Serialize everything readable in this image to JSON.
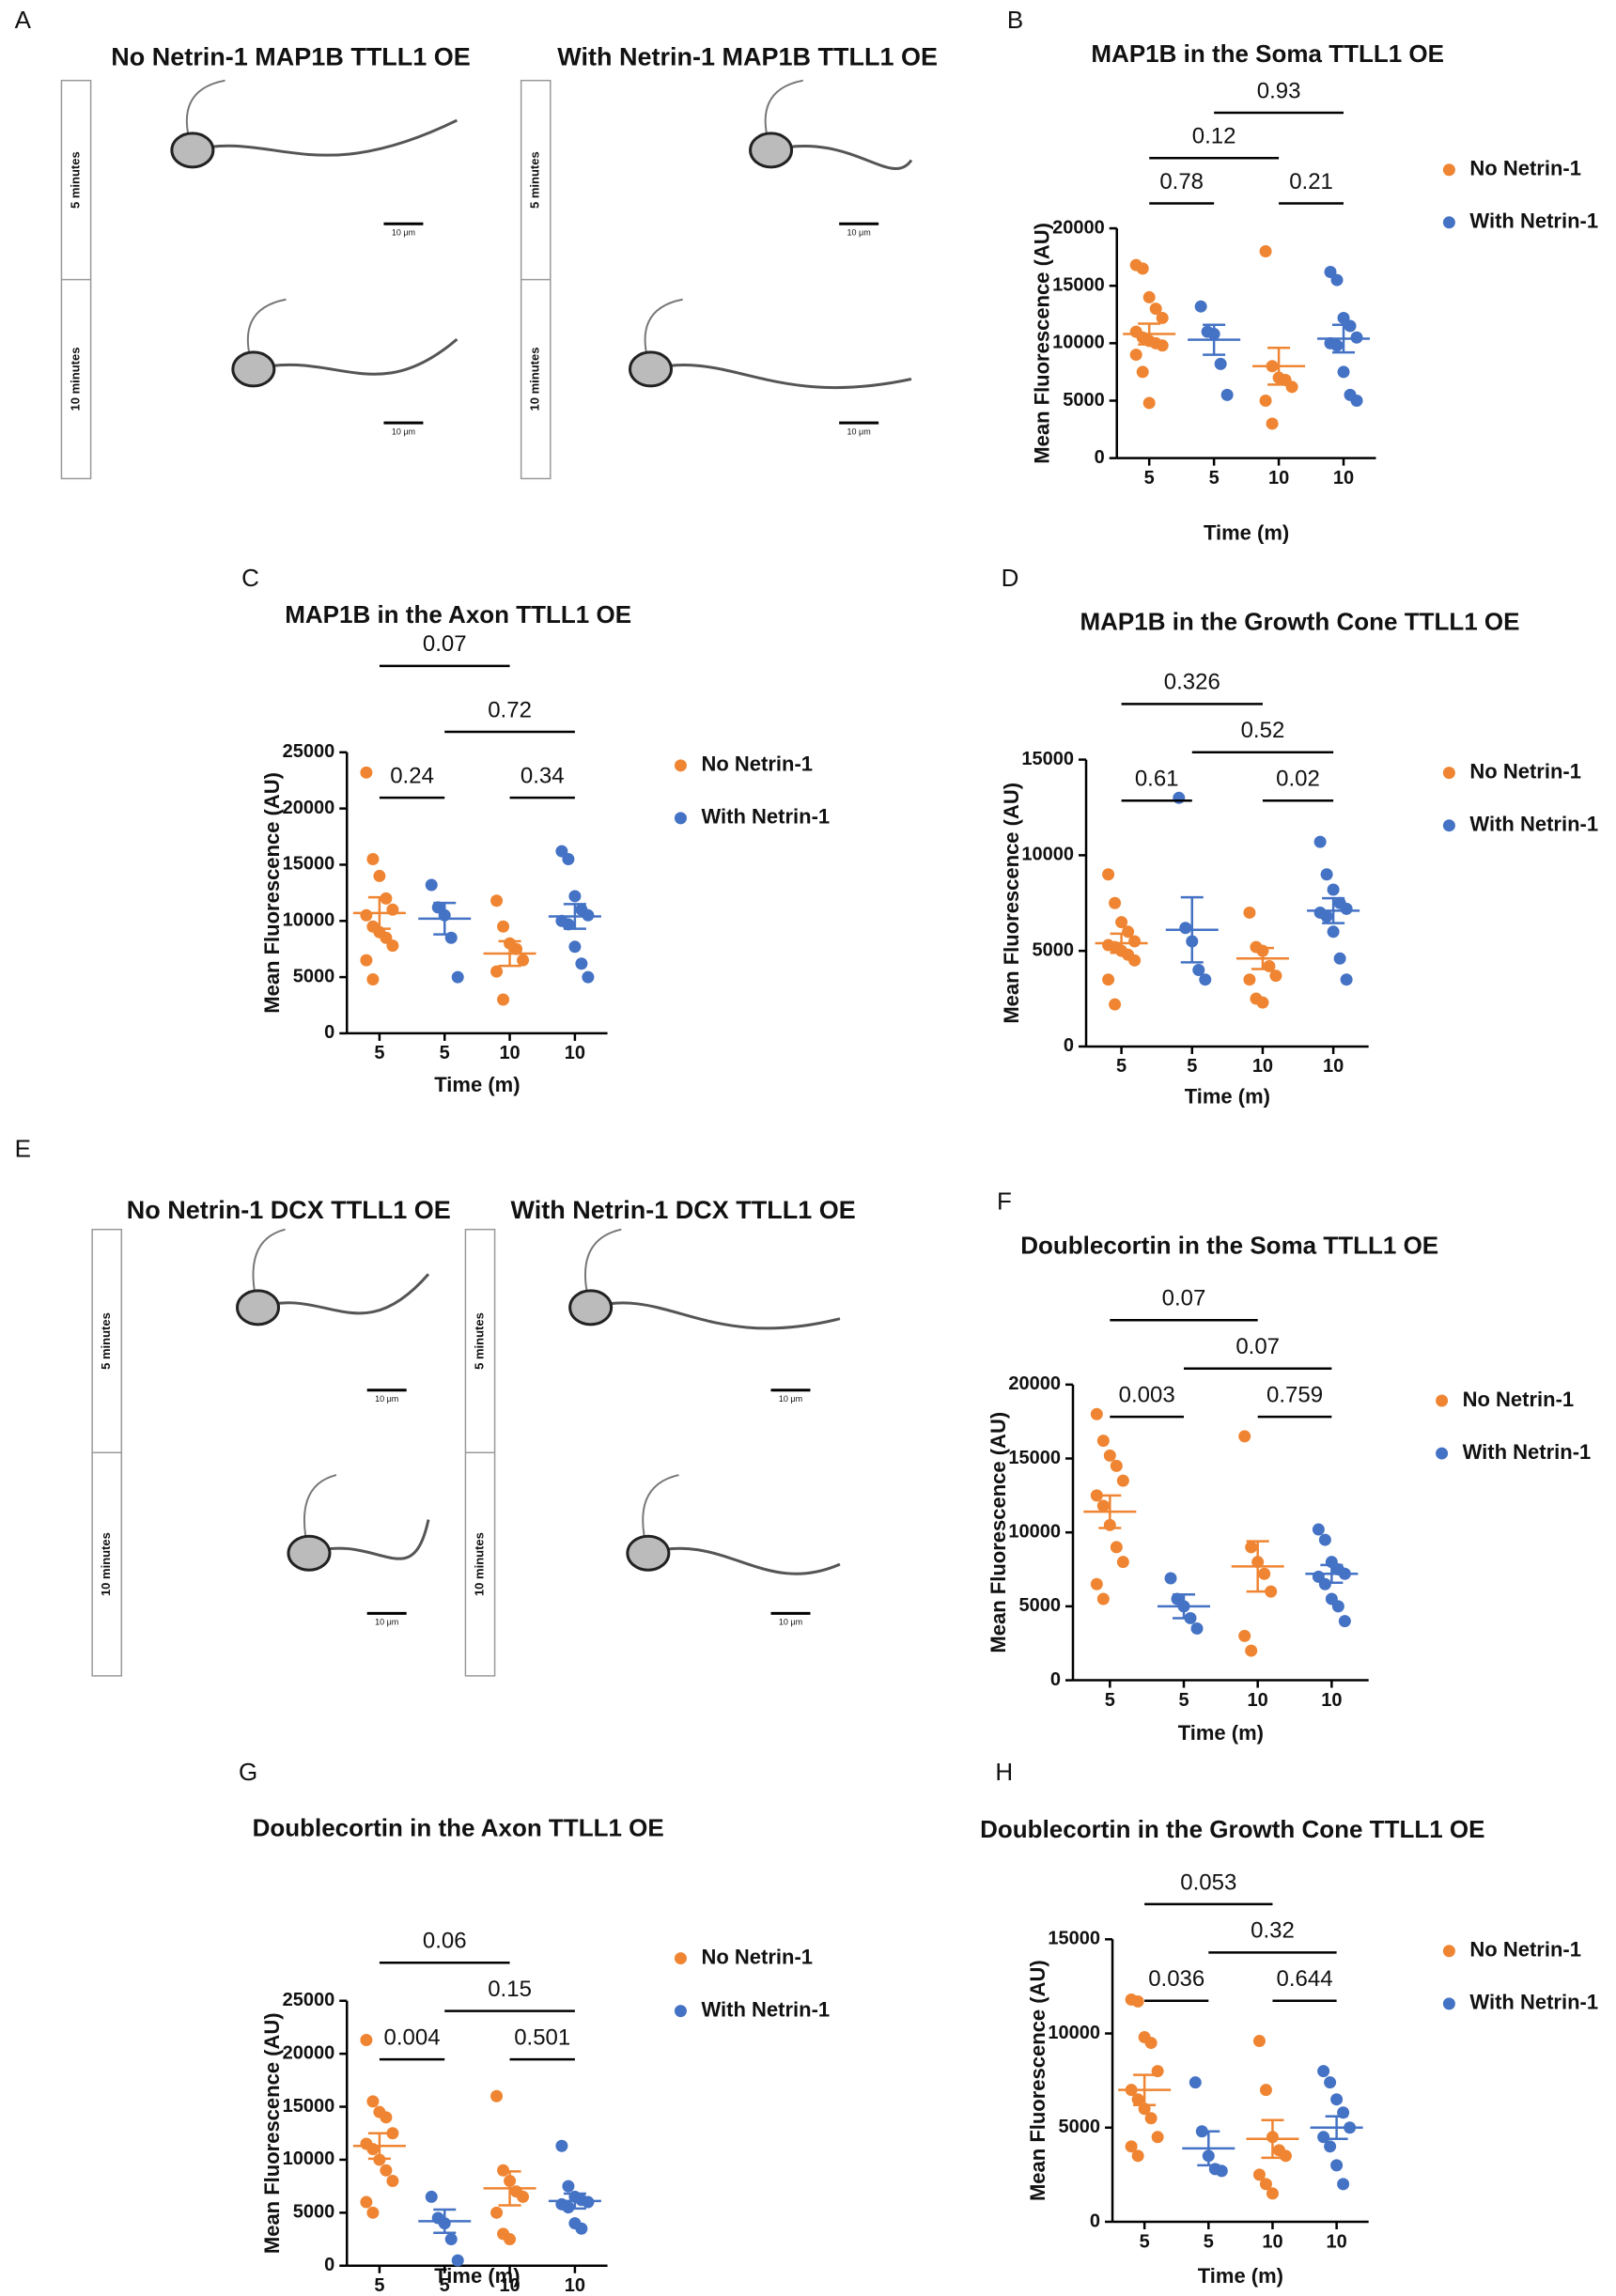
{
  "micrographs": [
    {
      "panel": "A",
      "images": [
        {
          "title": "No Netrin-1 MAP1B TTLL1 OE",
          "rows": [
            "5 minutes",
            "10 minutes"
          ],
          "scale_bars": [
            "10 μm",
            "10 μm"
          ]
        },
        {
          "title": "With Netrin-1 MAP1B TTLL1 OE",
          "rows": [
            "5 minutes",
            "10 minutes"
          ],
          "scale_bars": [
            "10 μm",
            "10 μm"
          ]
        }
      ]
    },
    {
      "panel": "E",
      "images": [
        {
          "title": "No Netrin-1 DCX TTLL1 OE",
          "rows": [
            "5 minutes",
            "10 minutes"
          ],
          "scale_bars": [
            "10 μm",
            "10 μm"
          ]
        },
        {
          "title": "With Netrin-1 DCX TTLL1 OE",
          "rows": [
            "5 minutes",
            "10 minutes"
          ],
          "scale_bars": [
            "10 μm",
            "10 μm"
          ]
        }
      ]
    }
  ],
  "chart_data": [
    {
      "type": "strip",
      "panel": "B",
      "title": "MAP1B in the Soma TTLL1 OE",
      "ylabel": "Mean Fluorescence (AU)",
      "xlabel": "Time (m)",
      "ylim": [
        0,
        20000
      ],
      "yticks": [
        0,
        5000,
        10000,
        15000,
        20000
      ],
      "series": [
        {
          "name": "No Netrin-1",
          "color": "#ef8532",
          "categories": [
            "5",
            "10"
          ],
          "points": [
            [
              16800,
              16500,
              14000,
              13000,
              12200,
              11000,
              10500,
              10200,
              10000,
              9800,
              9000,
              7500,
              4800
            ],
            [
              18000,
              8000,
              7000,
              6800,
              6200,
              5000,
              3000
            ]
          ],
          "mean": [
            10800,
            8000
          ],
          "sem": [
            900,
            1600
          ]
        },
        {
          "name": "With Netrin-1",
          "color": "#4472c4",
          "categories": [
            "5",
            "10"
          ],
          "points": [
            [
              13200,
              11000,
              10800,
              8200,
              5500
            ],
            [
              16200,
              15500,
              12200,
              11500,
              10500,
              10000,
              9800,
              7500,
              5500,
              5000
            ]
          ],
          "mean": [
            10300,
            10400
          ],
          "sem": [
            1300,
            1200
          ]
        }
      ],
      "comparisons": [
        {
          "label": "0.78",
          "groups": [
            0,
            1
          ]
        },
        {
          "label": "0.21",
          "groups": [
            2,
            3
          ]
        },
        {
          "label": "0.12",
          "groups": [
            0,
            2
          ]
        },
        {
          "label": "0.93",
          "groups": [
            1,
            3
          ]
        }
      ]
    },
    {
      "type": "strip",
      "panel": "C",
      "title": "MAP1B in the Axon TTLL1 OE",
      "ylabel": "Mean Fluorescence (AU)",
      "xlabel": "Time (m)",
      "ylim": [
        0,
        25000
      ],
      "yticks": [
        0,
        5000,
        10000,
        15000,
        20000,
        25000
      ],
      "series": [
        {
          "name": "No Netrin-1",
          "color": "#ef8532",
          "categories": [
            "5",
            "10"
          ],
          "points": [
            [
              23200,
              15500,
              14000,
              12000,
              11000,
              10500,
              9500,
              9000,
              8500,
              7800,
              6500,
              4800
            ],
            [
              11800,
              9500,
              8000,
              7500,
              6500,
              5500,
              3000
            ]
          ],
          "mean": [
            10700,
            7100
          ],
          "sem": [
            1400,
            1100
          ]
        },
        {
          "name": "With Netrin-1",
          "color": "#4472c4",
          "categories": [
            "5",
            "10"
          ],
          "points": [
            [
              13200,
              11200,
              10500,
              8500,
              5000
            ],
            [
              16200,
              15500,
              12200,
              11000,
              10500,
              10000,
              9700,
              7700,
              6200,
              5000
            ]
          ],
          "mean": [
            10200,
            10400
          ],
          "sem": [
            1400,
            1100
          ]
        }
      ],
      "comparisons": [
        {
          "label": "0.34",
          "groups": [
            2,
            3
          ]
        },
        {
          "label": "0.24",
          "groups": [
            0,
            1
          ]
        },
        {
          "label": "0.72",
          "groups": [
            1,
            3
          ]
        },
        {
          "label": "0.07",
          "groups": [
            0,
            2
          ]
        }
      ]
    },
    {
      "type": "strip",
      "panel": "D",
      "title": "MAP1B in the Growth Cone TTLL1 OE",
      "ylabel": "Mean Fluorescence (AU)",
      "xlabel": "Time (m)",
      "ylim": [
        0,
        15000
      ],
      "yticks": [
        0,
        5000,
        10000,
        15000
      ],
      "series": [
        {
          "name": "No Netrin-1",
          "color": "#ef8532",
          "categories": [
            "5",
            "10"
          ],
          "points": [
            [
              9000,
              7500,
              6500,
              6000,
              5500,
              5300,
              5200,
              5000,
              4800,
              4500,
              3500,
              2200
            ],
            [
              7000,
              5200,
              5000,
              4200,
              3700,
              3500,
              2500,
              2300
            ]
          ],
          "mean": [
            5400,
            4600
          ],
          "sem": [
            500,
            550
          ]
        },
        {
          "name": "With Netrin-1",
          "color": "#4472c4",
          "categories": [
            "5",
            "10"
          ],
          "points": [
            [
              13000,
              6200,
              5500,
              4000,
              3500
            ],
            [
              10700,
              9000,
              8200,
              7500,
              7200,
              7000,
              6800,
              6000,
              4600,
              3500
            ]
          ],
          "mean": [
            6100,
            7100
          ],
          "sem": [
            1700,
            650
          ]
        }
      ],
      "comparisons": [
        {
          "label": "0.02",
          "groups": [
            2,
            3
          ]
        },
        {
          "label": "0.61",
          "groups": [
            0,
            1
          ]
        },
        {
          "label": "0.52",
          "groups": [
            1,
            3
          ]
        },
        {
          "label": "0.326",
          "groups": [
            0,
            2
          ]
        }
      ]
    },
    {
      "type": "strip",
      "panel": "F",
      "title": "Doublecortin in the Soma TTLL1 OE",
      "ylabel": "Mean Fluorescence (AU)",
      "xlabel": "Time (m)",
      "ylim": [
        0,
        20000
      ],
      "yticks": [
        0,
        5000,
        10000,
        15000,
        20000
      ],
      "series": [
        {
          "name": "No Netrin-1",
          "color": "#ef8532",
          "categories": [
            "5",
            "10"
          ],
          "points": [
            [
              18000,
              16200,
              15200,
              14500,
              13500,
              12500,
              11800,
              10500,
              9000,
              8000,
              6500,
              5500
            ],
            [
              16500,
              9000,
              8000,
              7200,
              6000,
              3000,
              2000
            ]
          ],
          "mean": [
            11400,
            7700
          ],
          "sem": [
            1100,
            1700
          ]
        },
        {
          "name": "With Netrin-1",
          "color": "#4472c4",
          "categories": [
            "5",
            "10"
          ],
          "points": [
            [
              6900,
              5500,
              5000,
              4200,
              3500
            ],
            [
              10200,
              9500,
              8000,
              7500,
              7200,
              7000,
              6500,
              5500,
              5000,
              4000
            ]
          ],
          "mean": [
            5000,
            7200
          ],
          "sem": [
            800,
            600
          ]
        }
      ],
      "comparisons": [
        {
          "label": "0.759",
          "groups": [
            2,
            3
          ]
        },
        {
          "label": "0.003",
          "groups": [
            0,
            1
          ]
        },
        {
          "label": "0.07",
          "groups": [
            1,
            3
          ]
        },
        {
          "label": "0.07",
          "groups": [
            0,
            2
          ]
        }
      ]
    },
    {
      "type": "strip",
      "panel": "G",
      "title": "Doublecortin in the Axon TTLL1 OE",
      "ylabel": "Mean Fluorescence (AU)",
      "xlabel": "Time (m)",
      "ylim": [
        0,
        25000
      ],
      "yticks": [
        0,
        5000,
        10000,
        15000,
        20000,
        25000
      ],
      "series": [
        {
          "name": "No Netrin-1",
          "color": "#ef8532",
          "categories": [
            "5",
            "10"
          ],
          "points": [
            [
              21300,
              15500,
              14500,
              14000,
              12500,
              11500,
              11000,
              10000,
              9000,
              8000,
              6000,
              5000
            ],
            [
              16000,
              9000,
              8000,
              7000,
              6500,
              5000,
              3000,
              2500
            ]
          ],
          "mean": [
            11300,
            7300
          ],
          "sem": [
            1200,
            1600
          ]
        },
        {
          "name": "With Netrin-1",
          "color": "#4472c4",
          "categories": [
            "5",
            "10"
          ],
          "points": [
            [
              6500,
              4500,
              4000,
              2500,
              500
            ],
            [
              11300,
              7500,
              6500,
              6200,
              6000,
              5800,
              5500,
              4000,
              3500
            ]
          ],
          "mean": [
            4200,
            6100
          ],
          "sem": [
            1100,
            700
          ]
        }
      ],
      "comparisons": [
        {
          "label": "0.501",
          "groups": [
            2,
            3
          ]
        },
        {
          "label": "0.004",
          "groups": [
            0,
            1
          ]
        },
        {
          "label": "0.15",
          "groups": [
            1,
            3
          ]
        },
        {
          "label": "0.06",
          "groups": [
            0,
            2
          ]
        }
      ]
    },
    {
      "type": "strip",
      "panel": "H",
      "title": "Doublecortin in the Growth Cone TTLL1 OE",
      "ylabel": "Mean Fluorescence (AU)",
      "xlabel": "Time (m)",
      "ylim": [
        0,
        15000
      ],
      "yticks": [
        0,
        5000,
        10000,
        15000
      ],
      "series": [
        {
          "name": "No Netrin-1",
          "color": "#ef8532",
          "categories": [
            "5",
            "10"
          ],
          "points": [
            [
              11800,
              11700,
              9800,
              9500,
              8000,
              7000,
              6500,
              6000,
              5500,
              4500,
              4000,
              3500
            ],
            [
              9600,
              7000,
              4500,
              3800,
              3500,
              2500,
              2000,
              1500
            ]
          ],
          "mean": [
            7000,
            4400
          ],
          "sem": [
            800,
            1000
          ]
        },
        {
          "name": "With Netrin-1",
          "color": "#4472c4",
          "categories": [
            "5",
            "10"
          ],
          "points": [
            [
              7400,
              4800,
              3500,
              2800,
              2700
            ],
            [
              8000,
              7400,
              6500,
              5800,
              5000,
              4500,
              4000,
              3000,
              2000
            ]
          ],
          "mean": [
            3900,
            5000
          ],
          "sem": [
            900,
            600
          ]
        }
      ],
      "comparisons": [
        {
          "label": "0.644",
          "groups": [
            2,
            3
          ]
        },
        {
          "label": "0.036",
          "groups": [
            0,
            1
          ]
        },
        {
          "label": "0.32",
          "groups": [
            1,
            3
          ]
        },
        {
          "label": "0.053",
          "groups": [
            0,
            2
          ]
        }
      ]
    }
  ]
}
